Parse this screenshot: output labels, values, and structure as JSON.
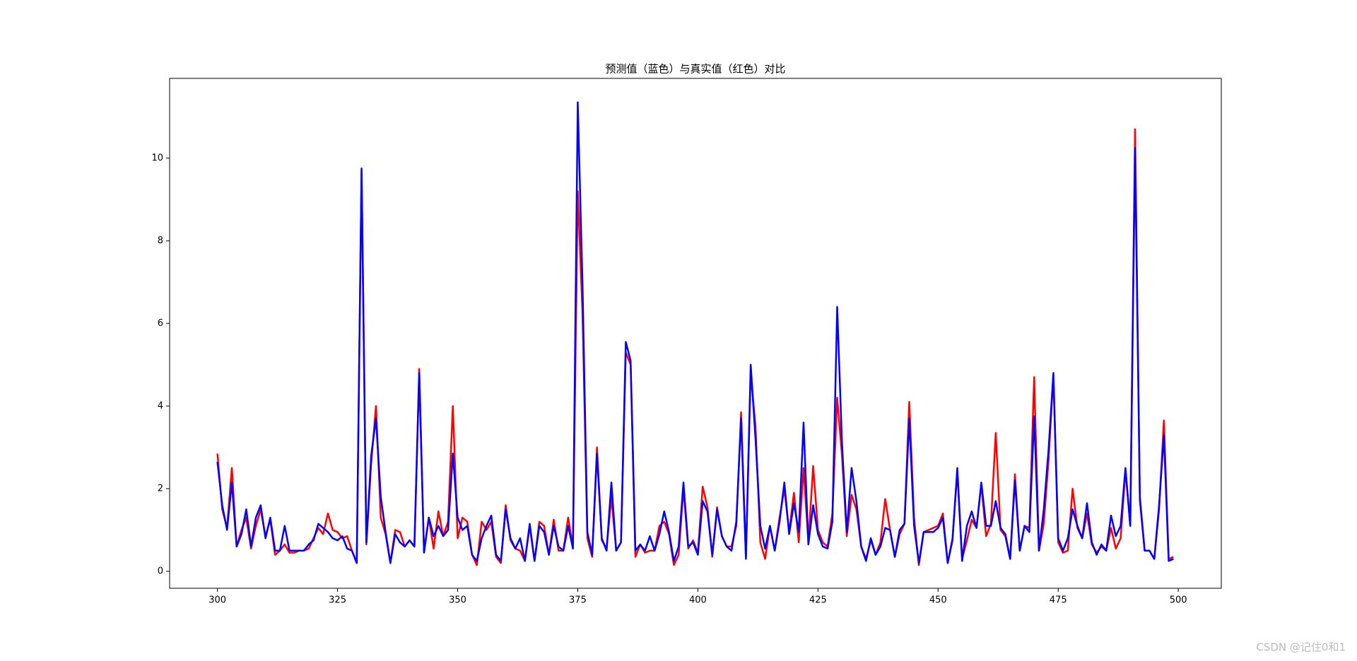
{
  "chart_data": {
    "type": "line",
    "title": "预测值（蓝色）与真实值（红色）对比",
    "watermark": "CSDN @记住0和1",
    "x": [
      300,
      301,
      302,
      303,
      304,
      305,
      306,
      307,
      308,
      309,
      310,
      311,
      312,
      313,
      314,
      315,
      316,
      317,
      318,
      319,
      320,
      321,
      322,
      323,
      324,
      325,
      326,
      327,
      328,
      329,
      330,
      331,
      332,
      333,
      334,
      335,
      336,
      337,
      338,
      339,
      340,
      341,
      342,
      343,
      344,
      345,
      346,
      347,
      348,
      349,
      350,
      351,
      352,
      353,
      354,
      355,
      356,
      357,
      358,
      359,
      360,
      361,
      362,
      363,
      364,
      365,
      366,
      367,
      368,
      369,
      370,
      371,
      372,
      373,
      374,
      375,
      376,
      377,
      378,
      379,
      380,
      381,
      382,
      383,
      384,
      385,
      386,
      387,
      388,
      389,
      390,
      391,
      392,
      393,
      394,
      395,
      396,
      397,
      398,
      399,
      400,
      401,
      402,
      403,
      404,
      405,
      406,
      407,
      408,
      409,
      410,
      411,
      412,
      413,
      414,
      415,
      416,
      417,
      418,
      419,
      420,
      421,
      422,
      423,
      424,
      425,
      426,
      427,
      428,
      429,
      430,
      431,
      432,
      433,
      434,
      435,
      436,
      437,
      438,
      439,
      440,
      441,
      442,
      443,
      444,
      445,
      446,
      447,
      448,
      449,
      450,
      451,
      452,
      453,
      454,
      455,
      456,
      457,
      458,
      459,
      460,
      461,
      462,
      463,
      464,
      465,
      466,
      467,
      468,
      469,
      470,
      471,
      472,
      473,
      474,
      475,
      476,
      477,
      478,
      479,
      480,
      481,
      482,
      483,
      484,
      485,
      486,
      487,
      488,
      489,
      490,
      491,
      492,
      493,
      494,
      495,
      496,
      497,
      498,
      499
    ],
    "series": [
      {
        "color": "#ff0000",
        "values": [
          2.85,
          1.5,
          1.05,
          2.5,
          0.6,
          1.0,
          1.3,
          0.55,
          1.1,
          1.5,
          0.85,
          1.25,
          0.4,
          0.5,
          0.65,
          0.45,
          0.45,
          0.5,
          0.5,
          0.55,
          0.8,
          1.05,
          0.9,
          1.4,
          1.0,
          0.95,
          0.8,
          0.85,
          0.5,
          0.2,
          9.7,
          0.65,
          2.6,
          4.0,
          1.3,
          0.9,
          0.2,
          1.0,
          0.95,
          0.6,
          0.75,
          0.6,
          4.9,
          0.5,
          1.3,
          0.55,
          1.45,
          0.85,
          1.2,
          4.0,
          0.8,
          1.3,
          1.2,
          0.4,
          0.15,
          1.2,
          1.0,
          1.2,
          0.35,
          0.2,
          1.6,
          0.75,
          0.55,
          0.5,
          0.25,
          1.1,
          0.25,
          1.2,
          1.1,
          0.4,
          1.25,
          0.5,
          0.5,
          1.3,
          0.6,
          9.2,
          6.2,
          0.8,
          0.35,
          3.0,
          0.75,
          0.55,
          1.8,
          0.5,
          0.7,
          5.3,
          5.0,
          0.35,
          0.65,
          0.45,
          0.5,
          0.5,
          1.1,
          1.2,
          0.9,
          0.15,
          0.4,
          2.0,
          0.55,
          0.75,
          0.45,
          2.05,
          1.55,
          0.35,
          1.55,
          0.85,
          0.6,
          0.6,
          1.1,
          3.85,
          0.35,
          4.8,
          3.5,
          0.7,
          0.3,
          1.1,
          0.5,
          1.3,
          2.0,
          0.95,
          1.9,
          0.7,
          2.5,
          0.7,
          2.55,
          1.0,
          0.7,
          0.6,
          1.4,
          4.2,
          2.8,
          0.85,
          1.85,
          1.5,
          0.6,
          0.3,
          0.75,
          0.4,
          0.7,
          1.75,
          1.0,
          0.35,
          0.9,
          1.15,
          4.1,
          1.3,
          0.15,
          0.95,
          1.0,
          1.05,
          1.1,
          1.4,
          0.2,
          0.8,
          2.4,
          0.3,
          0.75,
          1.25,
          1.05,
          2.1,
          0.85,
          1.15,
          3.35,
          1.0,
          0.85,
          0.3,
          2.35,
          0.5,
          1.1,
          1.05,
          4.7,
          0.5,
          1.15,
          2.7,
          4.75,
          0.7,
          0.45,
          0.5,
          2.0,
          1.05,
          0.8,
          1.4,
          0.65,
          0.45,
          0.6,
          0.5,
          1.05,
          0.55,
          0.8,
          2.45,
          1.1,
          10.7,
          1.7,
          0.5,
          0.5,
          0.3,
          1.5,
          3.65,
          0.3,
          0.35
        ]
      },
      {
        "color": "#0000ff",
        "values": [
          2.65,
          1.6,
          1.0,
          2.15,
          0.6,
          0.9,
          1.5,
          0.6,
          1.3,
          1.6,
          0.8,
          1.3,
          0.5,
          0.5,
          1.1,
          0.5,
          0.5,
          0.5,
          0.5,
          0.65,
          0.75,
          1.15,
          1.05,
          0.95,
          0.8,
          0.75,
          0.85,
          0.55,
          0.5,
          0.2,
          9.75,
          0.7,
          2.8,
          3.7,
          1.8,
          0.95,
          0.2,
          0.9,
          0.7,
          0.6,
          0.75,
          0.6,
          4.8,
          0.45,
          1.3,
          0.85,
          1.1,
          0.85,
          1.0,
          2.85,
          1.3,
          1.0,
          1.1,
          0.4,
          0.25,
          0.8,
          1.1,
          1.35,
          0.4,
          0.25,
          1.5,
          0.8,
          0.55,
          0.8,
          0.25,
          1.15,
          0.25,
          1.1,
          0.95,
          0.4,
          1.1,
          0.6,
          0.5,
          1.1,
          0.55,
          11.35,
          6.9,
          0.95,
          0.4,
          2.85,
          0.8,
          0.5,
          2.15,
          0.5,
          0.7,
          5.55,
          5.1,
          0.5,
          0.65,
          0.5,
          0.85,
          0.5,
          0.9,
          1.45,
          0.95,
          0.25,
          0.6,
          2.15,
          0.6,
          0.7,
          0.4,
          1.7,
          1.45,
          0.4,
          1.5,
          0.85,
          0.6,
          0.5,
          1.2,
          3.7,
          0.3,
          5.0,
          3.2,
          1.1,
          0.55,
          1.1,
          0.5,
          1.2,
          2.15,
          0.9,
          1.65,
          0.95,
          3.6,
          0.65,
          1.6,
          0.9,
          0.6,
          0.55,
          1.2,
          6.4,
          3.1,
          0.95,
          2.5,
          1.7,
          0.6,
          0.25,
          0.8,
          0.4,
          0.6,
          1.05,
          1.0,
          0.35,
          1.0,
          1.15,
          3.7,
          1.1,
          0.2,
          0.95,
          0.95,
          0.95,
          1.05,
          1.3,
          0.2,
          0.75,
          2.5,
          0.25,
          1.1,
          1.45,
          1.05,
          2.15,
          1.1,
          1.1,
          1.7,
          1.05,
          0.9,
          0.3,
          2.2,
          0.5,
          1.1,
          0.95,
          3.75,
          0.5,
          1.5,
          2.95,
          4.8,
          0.8,
          0.5,
          0.8,
          1.5,
          1.1,
          0.8,
          1.65,
          0.7,
          0.4,
          0.65,
          0.5,
          1.35,
          0.85,
          1.1,
          2.5,
          1.1,
          10.25,
          1.8,
          0.5,
          0.5,
          0.3,
          1.6,
          3.3,
          0.25,
          0.3
        ]
      }
    ],
    "xlim": [
      290.05,
      508.95
    ],
    "xticks": [
      300,
      325,
      350,
      375,
      400,
      425,
      450,
      475,
      500
    ],
    "ylim": [
      -0.41,
      11.93
    ],
    "yticks": [
      0,
      2,
      4,
      6,
      8,
      10
    ],
    "grid": false
  }
}
